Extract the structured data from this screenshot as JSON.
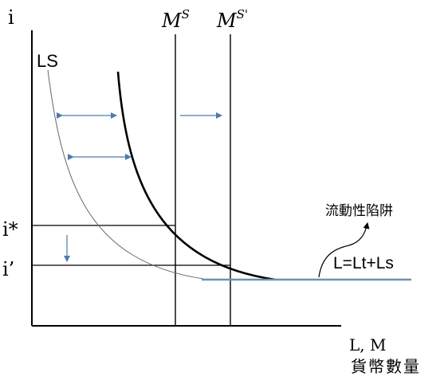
{
  "axes": {
    "y_label": "i",
    "x_label": "L, M",
    "x_sublabel": "貨幣數量"
  },
  "curves": {
    "ls_label": "LS",
    "total_label": "L=Lt+Ls"
  },
  "supply": {
    "ms_label": "M",
    "ms_sup": "S",
    "ms2_label": "M",
    "ms2_sup": "S'"
  },
  "rates": {
    "i_star": "i*",
    "i_prime": "i’"
  },
  "annotation": {
    "liquidity_trap": "流動性陷阱"
  },
  "colors": {
    "axis": "#000000",
    "thin_curve": "#666666",
    "thick_curve": "#000000",
    "arrow": "#4a7ab8",
    "trap_line": "#6b8fb8"
  }
}
